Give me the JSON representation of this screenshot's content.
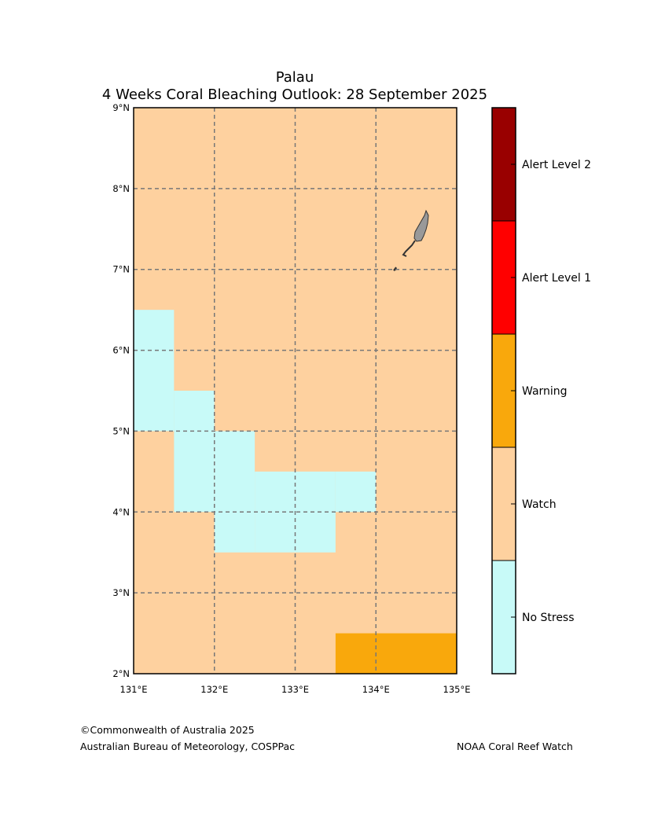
{
  "title": {
    "line1": "Palau",
    "line2": "4 Weeks Coral Bleaching Outlook: 28 September 2025"
  },
  "map": {
    "lon_range": [
      131,
      135
    ],
    "lat_range": [
      2,
      9
    ],
    "x_ticks": [
      "131°E",
      "132°E",
      "133°E",
      "134°E",
      "135°E"
    ],
    "y_ticks": [
      "2°N",
      "3°N",
      "4°N",
      "5°N",
      "6°N",
      "7°N",
      "8°N",
      "9°N"
    ],
    "gridlines": "dashed",
    "background_level": "Watch",
    "no_stress_cells": [
      {
        "lon": [
          131.0,
          131.5
        ],
        "lat": [
          5.0,
          6.5
        ]
      },
      {
        "lon": [
          131.5,
          132.0
        ],
        "lat": [
          4.0,
          5.5
        ]
      },
      {
        "lon": [
          132.0,
          132.5
        ],
        "lat": [
          3.5,
          5.0
        ]
      },
      {
        "lon": [
          132.5,
          133.5
        ],
        "lat": [
          3.5,
          4.5
        ]
      },
      {
        "lon": [
          133.5,
          134.0
        ],
        "lat": [
          4.0,
          4.5
        ]
      }
    ],
    "warning_cells": [
      {
        "lon": [
          133.5,
          135.0
        ],
        "lat": [
          2.0,
          2.5
        ]
      }
    ],
    "land": "Palau Islands"
  },
  "legend": {
    "levels": [
      {
        "label": "Alert Level 2",
        "color": "#990000"
      },
      {
        "label": "Alert Level 1",
        "color": "#ff0000"
      },
      {
        "label": "Warning",
        "color": "#f9a80c"
      },
      {
        "label": "Watch",
        "color": "#fed19f"
      },
      {
        "label": "No Stress",
        "color": "#c8faf8"
      }
    ]
  },
  "credits": {
    "copyright": "©Commonwealth of Australia 2025",
    "bureau": "Australian Bureau of Meteorology, COSPPac",
    "noaa": "NOAA Coral Reef Watch"
  }
}
